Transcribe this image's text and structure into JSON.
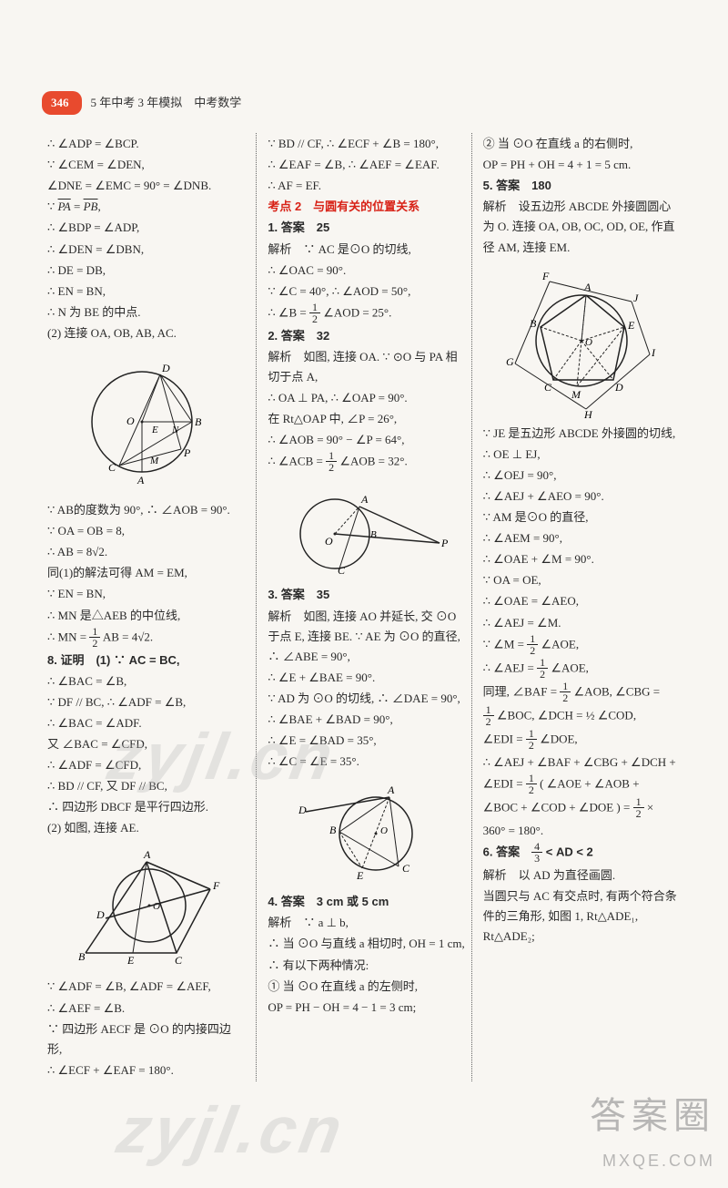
{
  "header": {
    "page_number": "346",
    "title": "5 年中考 3 年模拟　中考数学"
  },
  "columns": {
    "col1": [
      {
        "t": "line",
        "v": "∴ ∠ADP = ∠BCP."
      },
      {
        "t": "line",
        "v": "∵ ∠CEM = ∠DEN,"
      },
      {
        "t": "line",
        "v": "∠DNE = ∠EMC = 90° = ∠DNB."
      },
      {
        "t": "arc",
        "v": "∵ PA = PB,"
      },
      {
        "t": "line",
        "v": "∴ ∠BDP = ∠ADP,"
      },
      {
        "t": "line",
        "v": "∴ ∠DEN = ∠DBN,"
      },
      {
        "t": "line",
        "v": "∴ DE = DB,"
      },
      {
        "t": "line",
        "v": "∴ EN = BN,"
      },
      {
        "t": "line",
        "v": "∴ N 为 BE 的中点."
      },
      {
        "t": "line",
        "v": "(2) 连接 OA, OB, AB, AC."
      },
      {
        "t": "svg",
        "id": "fig1"
      },
      {
        "t": "line",
        "v": "∵ AB的度数为 90°, ∴ ∠AOB = 90°."
      },
      {
        "t": "line",
        "v": "∵ OA = OB = 8,"
      },
      {
        "t": "line",
        "v": "∴ AB = 8√2."
      },
      {
        "t": "line",
        "v": "同(1)的解法可得 AM = EM,"
      },
      {
        "t": "line",
        "v": "∵ EN = BN,"
      },
      {
        "t": "line",
        "v": "∴ MN 是△AEB 的中位线,"
      },
      {
        "t": "frac",
        "pre": "∴ MN = ",
        "num": "1",
        "den": "2",
        "post": " AB = 4√2."
      },
      {
        "t": "bold",
        "v": "8. 证明　(1) ∵ AC = BC,"
      },
      {
        "t": "line",
        "v": "∴ ∠BAC = ∠B,"
      },
      {
        "t": "line",
        "v": "∵ DF // BC, ∴ ∠ADF = ∠B,"
      },
      {
        "t": "line",
        "v": "∴ ∠BAC = ∠ADF."
      },
      {
        "t": "line",
        "v": "又 ∠BAC = ∠CFD,"
      },
      {
        "t": "line",
        "v": "∴ ∠ADF = ∠CFD,"
      },
      {
        "t": "line",
        "v": "∴ BD // CF, 又 DF // BC,"
      },
      {
        "t": "line",
        "v": "∴ 四边形 DBCF 是平行四边形."
      },
      {
        "t": "line",
        "v": "(2) 如图, 连接 AE."
      },
      {
        "t": "svg",
        "id": "fig2"
      },
      {
        "t": "line",
        "v": "∵ ∠ADF = ∠B, ∠ADF = ∠AEF,"
      },
      {
        "t": "line",
        "v": "∴ ∠AEF = ∠B."
      },
      {
        "t": "line",
        "v": "∵ 四边形 AECF 是 ⊙O 的内接四边形,"
      },
      {
        "t": "line",
        "v": "∴ ∠ECF + ∠EAF = 180°."
      }
    ],
    "col2": [
      {
        "t": "line",
        "v": "∵ BD // CF, ∴ ∠ECF + ∠B = 180°,"
      },
      {
        "t": "line",
        "v": "∴ ∠EAF = ∠B, ∴ ∠AEF = ∠EAF."
      },
      {
        "t": "line",
        "v": "∴ AF = EF."
      },
      {
        "t": "red",
        "v": "考点 2　与圆有关的位置关系"
      },
      {
        "t": "bold",
        "v": "1. 答案　25"
      },
      {
        "t": "line",
        "v": "解析　∵ AC 是⊙O 的切线,"
      },
      {
        "t": "line",
        "v": "∴ ∠OAC = 90°."
      },
      {
        "t": "line",
        "v": "∵ ∠C = 40°, ∴ ∠AOD = 50°,"
      },
      {
        "t": "frac",
        "pre": "∴ ∠B = ",
        "num": "1",
        "den": "2",
        "post": " ∠AOD = 25°."
      },
      {
        "t": "bold",
        "v": "2. 答案　32"
      },
      {
        "t": "line",
        "v": "解析　如图, 连接 OA. ∵ ⊙O 与 PA 相切于点 A,"
      },
      {
        "t": "line",
        "v": "∴ OA ⊥ PA, ∴ ∠OAP = 90°."
      },
      {
        "t": "line",
        "v": "在 Rt△OAP 中, ∠P = 26°,"
      },
      {
        "t": "line",
        "v": "∴ ∠AOB = 90° − ∠P = 64°,"
      },
      {
        "t": "frac",
        "pre": "∴ ∠ACB = ",
        "num": "1",
        "den": "2",
        "post": " ∠AOB = 32°."
      },
      {
        "t": "svg",
        "id": "fig3"
      },
      {
        "t": "bold",
        "v": "3. 答案　35"
      },
      {
        "t": "line",
        "v": "解析　如图, 连接 AO 并延长, 交 ⊙O 于点 E, 连接 BE. ∵ AE 为 ⊙O 的直径, ∴ ∠ABE = 90°,"
      },
      {
        "t": "line",
        "v": "∴ ∠E + ∠BAE = 90°."
      },
      {
        "t": "line",
        "v": "∵ AD 为 ⊙O 的切线, ∴ ∠DAE = 90°,"
      },
      {
        "t": "line",
        "v": "∴ ∠BAE + ∠BAD = 90°,"
      },
      {
        "t": "line",
        "v": "∴ ∠E = ∠BAD = 35°,"
      },
      {
        "t": "line",
        "v": "∴ ∠C = ∠E = 35°."
      },
      {
        "t": "svg",
        "id": "fig4"
      },
      {
        "t": "bold",
        "v": "4. 答案　3 cm 或 5 cm"
      },
      {
        "t": "line",
        "v": "解析　∵ a ⊥ b,"
      },
      {
        "t": "line",
        "v": "∴ 当 ⊙O 与直线 a 相切时, OH = 1 cm,"
      },
      {
        "t": "line",
        "v": "∴ 有以下两种情况:"
      },
      {
        "t": "line",
        "v": "① 当 ⊙O 在直线 a 的左侧时,"
      },
      {
        "t": "line",
        "v": "OP = PH − OH = 4 − 1 = 3 cm;"
      }
    ],
    "col3": [
      {
        "t": "line",
        "v": "② 当 ⊙O 在直线 a 的右侧时,"
      },
      {
        "t": "line",
        "v": "OP = PH + OH = 4 + 1 = 5 cm."
      },
      {
        "t": "bold",
        "v": "5. 答案　180"
      },
      {
        "t": "line",
        "v": "解析　设五边形 ABCDE 外接圆圆心为 O. 连接 OA, OB, OC, OD, OE, 作直径 AM, 连接 EM."
      },
      {
        "t": "svg",
        "id": "fig5"
      },
      {
        "t": "line",
        "v": "∵ JE 是五边形 ABCDE 外接圆的切线,"
      },
      {
        "t": "line",
        "v": "∴ OE ⊥ EJ,"
      },
      {
        "t": "line",
        "v": "∴ ∠OEJ = 90°,"
      },
      {
        "t": "line",
        "v": "∴ ∠AEJ + ∠AEO = 90°."
      },
      {
        "t": "line",
        "v": "∵ AM 是⊙O 的直径,"
      },
      {
        "t": "line",
        "v": "∴ ∠AEM = 90°,"
      },
      {
        "t": "line",
        "v": "∴ ∠OAE + ∠M = 90°."
      },
      {
        "t": "line",
        "v": "∵ OA = OE,"
      },
      {
        "t": "line",
        "v": "∴ ∠OAE = ∠AEO,"
      },
      {
        "t": "line",
        "v": "∴ ∠AEJ = ∠M."
      },
      {
        "t": "frac",
        "pre": "∵ ∠M = ",
        "num": "1",
        "den": "2",
        "post": " ∠AOE,"
      },
      {
        "t": "frac",
        "pre": "∴ ∠AEJ = ",
        "num": "1",
        "den": "2",
        "post": " ∠AOE,"
      },
      {
        "t": "frac",
        "pre": "同理, ∠BAF = ",
        "num": "1",
        "den": "2",
        "post": " ∠AOB, ∠CBG ="
      },
      {
        "t": "frac",
        "pre": "",
        "num": "1",
        "den": "2",
        "post": " ∠BOC, ∠DCH = ½ ∠COD,"
      },
      {
        "t": "frac",
        "pre": "∠EDI = ",
        "num": "1",
        "den": "2",
        "post": " ∠DOE,"
      },
      {
        "t": "line",
        "v": "∴ ∠AEJ + ∠BAF + ∠CBG + ∠DCH +"
      },
      {
        "t": "frac",
        "pre": "∠EDI = ",
        "num": "1",
        "den": "2",
        "post": " ( ∠AOE + ∠AOB +"
      },
      {
        "t": "frac",
        "pre": "∠BOC + ∠COD + ∠DOE ) = ",
        "num": "1",
        "den": "2",
        "post": " ×"
      },
      {
        "t": "line",
        "v": "360° = 180°."
      },
      {
        "t": "bold_frac",
        "v": "6. 答案　",
        "num": "4",
        "den": "3",
        "post": " < AD < 2"
      },
      {
        "t": "line",
        "v": "解析　以 AD 为直径画圆."
      },
      {
        "t": "line",
        "v": "当圆只与 AC 有交点时, 有两个符合条件的三角形, 如图 1, Rt△ADE₁, Rt△ADE₂;"
      }
    ]
  },
  "figures": {
    "fig1": {
      "stroke": "#222",
      "r": 55,
      "labels": [
        "O",
        "A",
        "B",
        "C",
        "D",
        "E",
        "M",
        "N",
        "P"
      ]
    },
    "fig2": {
      "stroke": "#222",
      "r": 40,
      "labels": [
        "O",
        "A",
        "B",
        "C",
        "D",
        "E",
        "F"
      ]
    },
    "fig3": {
      "stroke": "#222",
      "r": 40,
      "labels": [
        "O",
        "A",
        "B",
        "C",
        "P"
      ]
    },
    "fig4": {
      "stroke": "#222",
      "r": 40,
      "labels": [
        "O",
        "A",
        "B",
        "C",
        "D",
        "E"
      ]
    },
    "fig5": {
      "stroke": "#222",
      "r": 50,
      "labels": [
        "O",
        "A",
        "B",
        "C",
        "D",
        "E",
        "F",
        "G",
        "H",
        "I",
        "J",
        "M"
      ]
    }
  },
  "watermarks": {
    "wm1": "zyjl.cn",
    "wm2": "zyjl.cn",
    "brand_cn": "答案圈",
    "brand_en": "MXQE.COM"
  },
  "colors": {
    "badge_bg": "#e84a2e",
    "red_heading": "#d82217",
    "text": "#2a2a2a",
    "bg": "#f8f6f2",
    "rule": "#666666"
  }
}
